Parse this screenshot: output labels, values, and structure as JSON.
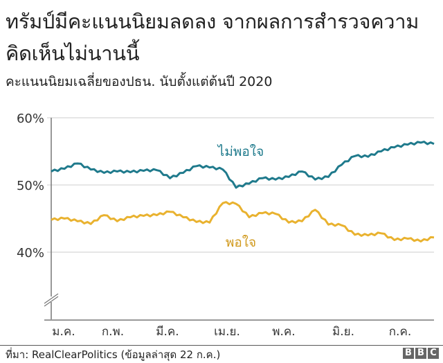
{
  "title": "ทรัมป์มีคะแนนนิยมลดลง จากผลการสำรวจความคิดเห็นไม่นานนี้",
  "subtitle": "คะแนนนิยมเฉลี่ยของปธน. นับตั้งแต่ต้นปี 2020",
  "source": "ที่มา: RealClearPolitics (ข้อมูลล่าสุด 22 ก.ค.)",
  "brand": [
    "B",
    "B",
    "C"
  ],
  "colors": {
    "disapprove": "#1f7a8c",
    "approve": "#e9b22f",
    "grid": "#cccccc",
    "axis": "#777777"
  },
  "chart_data": {
    "type": "line",
    "title": "ทรัมป์มีคะแนนนิยมลดลง จากผลการสำรวจความคิดเห็นไม่นานนี้",
    "subtitle": "คะแนนนิยมเฉลี่ยของปธน. นับตั้งแต่ต้นปี 2020",
    "xlabel": "",
    "ylabel": "",
    "ylim": [
      30,
      60
    ],
    "yticks": [
      "60%",
      "50%",
      "40%"
    ],
    "y_axis_break": true,
    "grid": true,
    "x_tick_labels": [
      "ม.ค.",
      "ก.พ.",
      "มี.ค.",
      "เม.ย.",
      "พ.ค.",
      "มิ.ย.",
      "ก.ค."
    ],
    "x": [
      "1 ม.ค.",
      "8 ม.ค.",
      "15 ม.ค.",
      "22 ม.ค.",
      "29 ม.ค.",
      "5 ก.พ.",
      "12 ก.พ.",
      "19 ก.พ.",
      "26 ก.พ.",
      "4 มี.ค.",
      "11 มี.ค.",
      "18 มี.ค.",
      "25 มี.ค.",
      "1 เม.ย.",
      "8 เม.ย.",
      "15 เม.ย.",
      "22 เม.ย.",
      "29 เม.ย.",
      "6 พ.ค.",
      "13 พ.ค.",
      "20 พ.ค.",
      "27 พ.ค.",
      "3 มิ.ย.",
      "10 มิ.ย.",
      "17 มิ.ย.",
      "24 มิ.ย.",
      "1 ก.ค.",
      "8 ก.ค.",
      "15 ก.ค.",
      "22 ก.ค."
    ],
    "series": [
      {
        "name": "ไม่พอใจ",
        "label": "ไม่พอใจ",
        "values": [
          52.0,
          52.4,
          53.2,
          52.3,
          51.8,
          52.0,
          51.9,
          52.1,
          52.2,
          51.0,
          51.8,
          52.8,
          52.6,
          52.3,
          49.6,
          50.2,
          51.0,
          50.8,
          51.2,
          52.0,
          50.8,
          51.2,
          53.0,
          54.3,
          54.2,
          55.0,
          55.6,
          56.0,
          56.3,
          56.1
        ]
      },
      {
        "name": "พอใจ",
        "label": "พอใจ",
        "values": [
          44.8,
          45.0,
          44.6,
          44.2,
          45.5,
          44.6,
          45.2,
          45.4,
          45.5,
          46.0,
          45.2,
          44.5,
          44.4,
          47.3,
          47.2,
          45.2,
          45.8,
          45.7,
          44.4,
          44.6,
          46.3,
          44.1,
          44.0,
          42.6,
          42.5,
          42.8,
          41.8,
          42.0,
          41.6,
          42.2
        ]
      }
    ]
  },
  "labels": {
    "disapprove": "ไม่พอใจ",
    "approve": "พอใจ"
  }
}
